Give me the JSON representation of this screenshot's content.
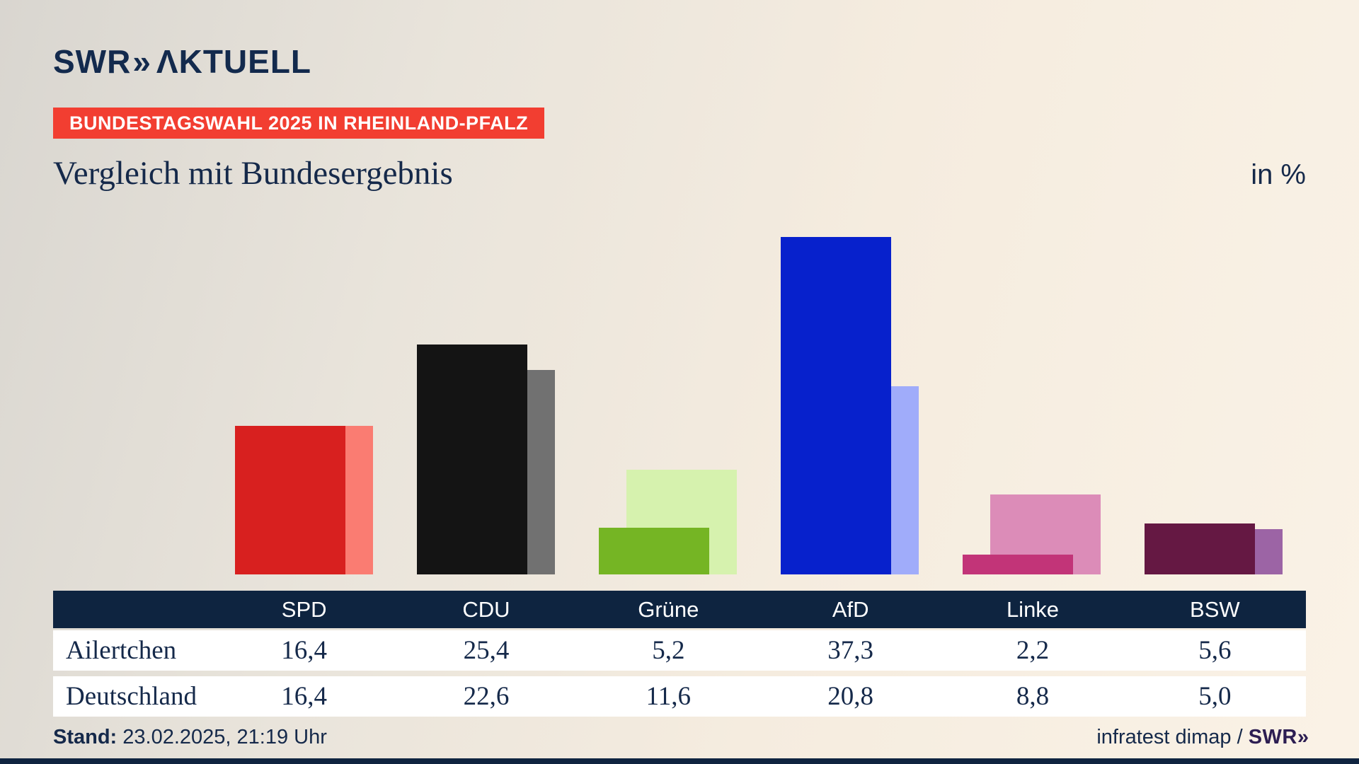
{
  "header": {
    "logo_brand": "SWR",
    "logo_chevrons": "»",
    "logo_wordmark": "ΛKTUELL",
    "badge": "BUNDESTAGSWAHL 2025 IN RHEINLAND-PFALZ",
    "title": "Vergleich mit Bundesergebnis",
    "unit_label": "in %"
  },
  "chart_data": {
    "type": "bar",
    "title": "Vergleich mit Bundesergebnis",
    "unit": "%",
    "categories": [
      "SPD",
      "CDU",
      "Grüne",
      "AfD",
      "Linke",
      "BSW"
    ],
    "series": [
      {
        "name": "Ailertchen",
        "values": [
          16.4,
          25.4,
          5.2,
          37.3,
          2.2,
          5.6
        ]
      },
      {
        "name": "Deutschland",
        "values": [
          16.4,
          22.6,
          11.6,
          20.8,
          8.8,
          5.0
        ]
      }
    ],
    "ylim": [
      0,
      40
    ],
    "grid": false,
    "legend": "none",
    "party_colors": {
      "SPD": {
        "main": "#d8201f",
        "light": "#fa7c72"
      },
      "CDU": {
        "main": "#141414",
        "light": "#717171"
      },
      "Grüne": {
        "main": "#75b524",
        "light": "#d6f2ae"
      },
      "AfD": {
        "main": "#0721cc",
        "light": "#a0acfa"
      },
      "Linke": {
        "main": "#c23478",
        "light": "#dc8cb8"
      },
      "BSW": {
        "main": "#651843",
        "light": "#9c64a5"
      }
    }
  },
  "table": {
    "columns": [
      "SPD",
      "CDU",
      "Grüne",
      "AfD",
      "Linke",
      "BSW"
    ],
    "rows": [
      {
        "label": "Ailertchen",
        "values": [
          "16,4",
          "25,4",
          "5,2",
          "37,3",
          "2,2",
          "5,6"
        ]
      },
      {
        "label": "Deutschland",
        "values": [
          "16,4",
          "22,6",
          "11,6",
          "20,8",
          "8,8",
          "5,0"
        ]
      }
    ]
  },
  "footer": {
    "stand_label": "Stand:",
    "stand_value": " 23.02.2025, 21:19 Uhr",
    "source_text": "infratest dimap / ",
    "source_brand": "SWR",
    "source_brand_chevrons": "»"
  },
  "colors": {
    "navy_text": "#15294a",
    "table_header_bg": "#0e2440",
    "badge_red": "#f23e31",
    "background_light": "#faf2e6",
    "background_dark": "#d9d6d0"
  }
}
